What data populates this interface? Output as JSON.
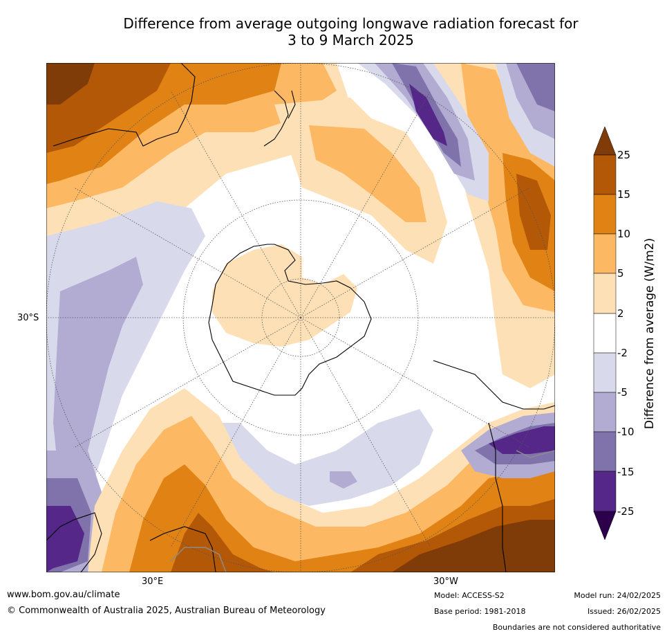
{
  "title": {
    "line1": "Difference from average outgoing longwave radiation forecast for",
    "line2": "3 to 9 March 2025"
  },
  "map": {
    "projection": "south polar stereographic",
    "axis_labels": {
      "lat": "30°S",
      "lon_left": "30°E",
      "lon_right": "30°W"
    },
    "colors": {
      "ocean": "#ffffff",
      "coastline": "#000000",
      "state_boundaries": "#8c8c8c",
      "graticule": "#555555"
    }
  },
  "colorbar": {
    "label": "Difference from average (W/m2)",
    "ticks": [
      "25",
      "15",
      "10",
      "5",
      "2",
      "-2",
      "-5",
      "-10",
      "-15",
      "-25"
    ],
    "bins": [
      {
        "range": "> 25",
        "color": "#7f3b08"
      },
      {
        "range": "15 to 25",
        "color": "#b35806"
      },
      {
        "range": "10 to 15",
        "color": "#e08214"
      },
      {
        "range": "5 to 10",
        "color": "#fdb863"
      },
      {
        "range": "2 to 5",
        "color": "#fee0b6"
      },
      {
        "range": "-2 to 2",
        "color": "#ffffff"
      },
      {
        "range": "-5 to -2",
        "color": "#d8daeb"
      },
      {
        "range": "-10 to -5",
        "color": "#b2abd2"
      },
      {
        "range": "-15 to -10",
        "color": "#8073ac"
      },
      {
        "range": "-25 to -15",
        "color": "#542788"
      },
      {
        "range": "< -25",
        "color": "#2d004b"
      }
    ]
  },
  "footer": {
    "website": "www.bom.gov.au/climate",
    "copyright": "© Commonwealth of Australia 2025, Australian Bureau of Meteorology",
    "model": "Model: ACCESS-S2",
    "base_period": "Base period: 1981-2018",
    "model_run": "Model run: 24/02/2025",
    "issued": "Issued: 26/02/2025",
    "disclaimer": "Boundaries are not considered authoritative"
  }
}
